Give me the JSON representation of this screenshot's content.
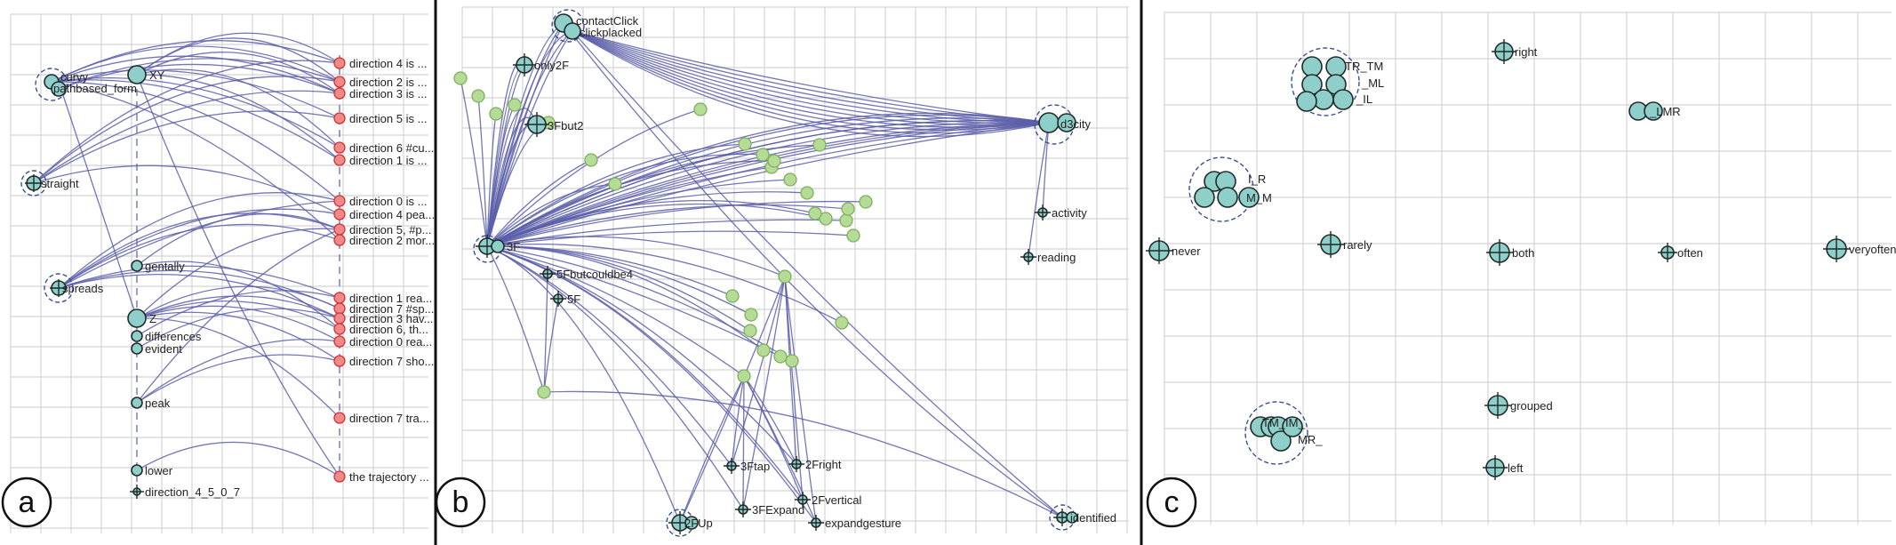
{
  "figure": {
    "colors": {
      "grid": "#d4d4d4",
      "edge": "#5b5ea8",
      "node_fill": "#8ecfc9",
      "node_stroke": "#1f2a2a",
      "bundle_fill": "#b5dc96",
      "bundle_stroke": "#7fae5c",
      "dir_fill": "#f08a8a",
      "dir_stroke": "#d43030",
      "cluster_ring": "#3a4f9a",
      "divider": "#111111"
    },
    "panels": [
      {
        "letter": "a",
        "nodes": [
          {
            "id": "curvy",
            "label": "curvy"
          },
          {
            "id": "pathbased",
            "label": "pathbased_form"
          },
          {
            "id": "XY",
            "label": "XY"
          },
          {
            "id": "straight",
            "label": "straight"
          },
          {
            "id": "spreads",
            "label": "spreads"
          },
          {
            "id": "gentally",
            "label": "gentally"
          },
          {
            "id": "Z",
            "label": "Z"
          },
          {
            "id": "differences",
            "label": "differences"
          },
          {
            "id": "evident",
            "label": "evident"
          },
          {
            "id": "peak",
            "label": "peak"
          },
          {
            "id": "lower",
            "label": "lower"
          },
          {
            "id": "d4507",
            "label": "direction_4_5_0_7"
          }
        ],
        "directions": [
          "direction 4 is ...",
          "direction 2 is ...",
          "direction 3 is ...",
          "direction 5 is ...",
          "direction 6 #cu...",
          "direction 1 is ...",
          "direction 0 is ...",
          "direction 4 pea...",
          "direction 5, #p...",
          "direction 2 mor...",
          "direction 1 rea...",
          "direction 7 #sp...",
          "direction 3 hav...",
          "direction 6, th...",
          "direction 0 rea...",
          "direction 7 sho...",
          "direction 7 tra...",
          "the trajectory ..."
        ]
      },
      {
        "letter": "b",
        "nodes": [
          {
            "id": "contactClick",
            "label": "contactClick"
          },
          {
            "id": "clickplacked",
            "label": "clickplacked"
          },
          {
            "id": "only2F",
            "label": "only2F"
          },
          {
            "id": "3Fbut2",
            "label": "3Fbut2"
          },
          {
            "id": "3F",
            "label": "3F"
          },
          {
            "id": "d3city",
            "label": "d3city"
          },
          {
            "id": "activity",
            "label": "activity"
          },
          {
            "id": "reading",
            "label": "reading"
          },
          {
            "id": "5Fbut",
            "label": "5Fbutcouldbe4"
          },
          {
            "id": "5F",
            "label": "5F"
          },
          {
            "id": "3Ftap",
            "label": "3Ftap"
          },
          {
            "id": "2Fright",
            "label": "2Fright"
          },
          {
            "id": "3FExpand",
            "label": "3FExpand"
          },
          {
            "id": "2Fvertical",
            "label": "2Fvertical"
          },
          {
            "id": "expandgesture",
            "label": "expandgesture"
          },
          {
            "id": "2FUp",
            "label": "2FUp"
          },
          {
            "id": "identified",
            "label": "identified"
          }
        ]
      },
      {
        "letter": "c",
        "nodes": [
          {
            "id": "right",
            "label": "right"
          },
          {
            "id": "TR_TM",
            "label": "TR_TM"
          },
          {
            "id": "ML",
            "label": "_ML"
          },
          {
            "id": "IL",
            "label": "_IL"
          },
          {
            "id": "LMR",
            "label": "_LMR"
          },
          {
            "id": "I_R",
            "label": "I_R"
          },
          {
            "id": "M_M",
            "label": "M_M"
          },
          {
            "id": "never",
            "label": "never"
          },
          {
            "id": "rarely",
            "label": "rarely"
          },
          {
            "id": "both",
            "label": "both"
          },
          {
            "id": "often",
            "label": "often"
          },
          {
            "id": "veryoften",
            "label": "veryoften"
          },
          {
            "id": "grouped",
            "label": "grouped"
          },
          {
            "id": "TM_IM",
            "label": "TM_IM_"
          },
          {
            "id": "MR",
            "label": "MR_"
          },
          {
            "id": "left",
            "label": "left"
          }
        ]
      }
    ]
  }
}
